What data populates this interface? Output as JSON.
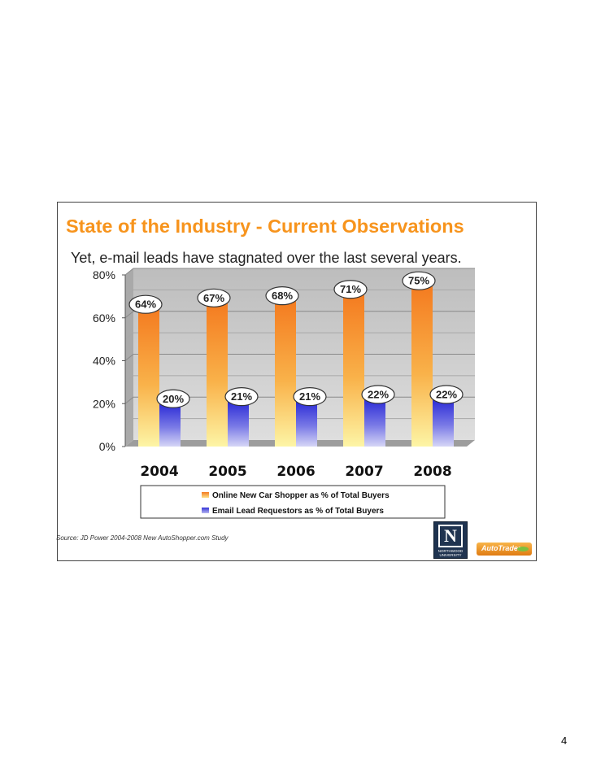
{
  "slide": {
    "title": "State of the Industry - Current Observations",
    "subtitle": "Yet, e-mail leads have stagnated over the last several years.",
    "source": "Source:  JD Power 2004-2008 New AutoShopper.com Study",
    "page_number": "4"
  },
  "logos": {
    "northwood": {
      "letter": "N",
      "caption": "NORTHWOOD UNIVERSITY"
    },
    "autotrader": {
      "text": "AutoTrader"
    }
  },
  "chart_data": {
    "type": "bar",
    "categories": [
      "2004",
      "2005",
      "2006",
      "2007",
      "2008"
    ],
    "series": [
      {
        "name": "Online New Car Shopper as % of Total Buyers",
        "values": [
          64,
          67,
          68,
          71,
          75
        ],
        "labels": [
          "64%",
          "67%",
          "68%",
          "71%",
          "75%"
        ],
        "color": "#f47b20"
      },
      {
        "name": "Email Lead Requestors as % of Total Buyers",
        "values": [
          20,
          21,
          21,
          22,
          22
        ],
        "labels": [
          "20%",
          "21%",
          "21%",
          "22%",
          "22%"
        ],
        "color": "#4a4ae0"
      }
    ],
    "y_ticks": [
      "0%",
      "20%",
      "40%",
      "60%",
      "80%"
    ],
    "ylim": [
      0,
      80
    ],
    "grid": true,
    "legend_position": "bottom",
    "plot_background": "#c0c0c0"
  }
}
